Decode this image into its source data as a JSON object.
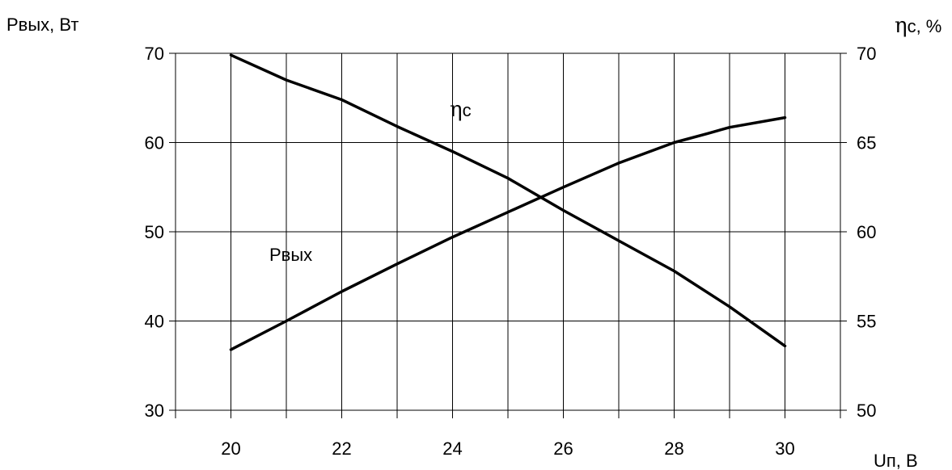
{
  "chart_data": {
    "type": "line",
    "x": [
      20,
      21,
      22,
      23,
      24,
      25,
      26,
      27,
      28,
      28.6,
      29,
      30
    ],
    "series": [
      {
        "name": "Pвых",
        "axis": "left",
        "values": [
          36.8,
          40.0,
          43.3,
          46.4,
          49.4,
          52.2,
          55.0,
          57.7,
          60.0,
          61.0,
          61.7,
          62.8
        ]
      },
      {
        "name": "ηc",
        "axis": "right",
        "x": [
          20,
          21,
          22,
          23,
          24,
          25,
          26,
          27,
          28,
          29,
          30
        ],
        "values": [
          69.9,
          68.5,
          67.4,
          65.9,
          64.5,
          63.0,
          61.2,
          59.5,
          57.8,
          55.8,
          53.6
        ]
      }
    ],
    "xlabel": "Uп, В",
    "ylabel_left": "Pвых, Вт",
    "ylabel_right_greek": "η",
    "ylabel_right_rest": "c, %",
    "xlim": [
      19,
      31
    ],
    "ylim_left": [
      30,
      70
    ],
    "ylim_right": [
      50,
      70
    ],
    "x_ticks": [
      20,
      22,
      24,
      26,
      28,
      30
    ],
    "x_tick_labels": [
      "20",
      "22",
      "24",
      "26",
      "28",
      "30"
    ],
    "y_ticks_left": [
      30,
      40,
      50,
      60,
      70
    ],
    "y_tick_labels_left": [
      "30",
      "40",
      "50",
      "60",
      "70"
    ],
    "y_ticks_right": [
      50,
      55,
      60,
      65,
      70
    ],
    "y_tick_labels_right": [
      "50",
      "55",
      "60",
      "65",
      "70"
    ],
    "grid": true,
    "series_labels": [
      {
        "greek": "",
        "text": "Pвых"
      },
      {
        "greek": "η",
        "text": "c"
      }
    ],
    "line_color": "#000000",
    "grid_color": "#000000"
  }
}
